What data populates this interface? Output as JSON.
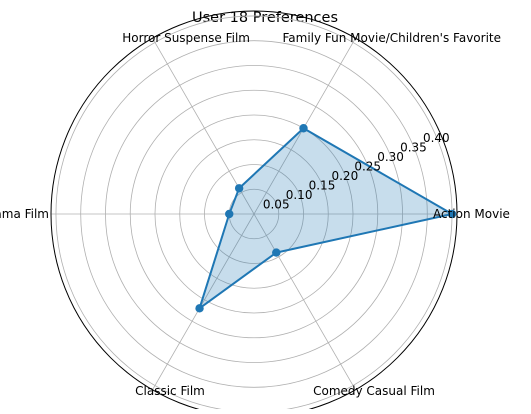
{
  "chart_data": {
    "type": "radar",
    "title": "User 18 Preferences",
    "categories": [
      "Action Movie",
      "Family Fun Movie/Children's Favorite",
      "Horror Suspense Film",
      "Easy Drama Film",
      "Classic Film",
      "Comedy Casual Film"
    ],
    "series": [
      {
        "values": [
          0.4,
          0.2,
          0.06,
          0.05,
          0.22,
          0.09
        ]
      }
    ],
    "radial_ticks": [
      "0.05",
      "0.10",
      "0.15",
      "0.20",
      "0.25",
      "0.30",
      "0.35",
      "0.40"
    ],
    "rlim": [
      0,
      0.41
    ],
    "grid": true,
    "colors": {
      "line": "#1f77b4",
      "fill": "#1f77b4",
      "grid": "#b0b0b0",
      "frame": "#000000"
    }
  }
}
